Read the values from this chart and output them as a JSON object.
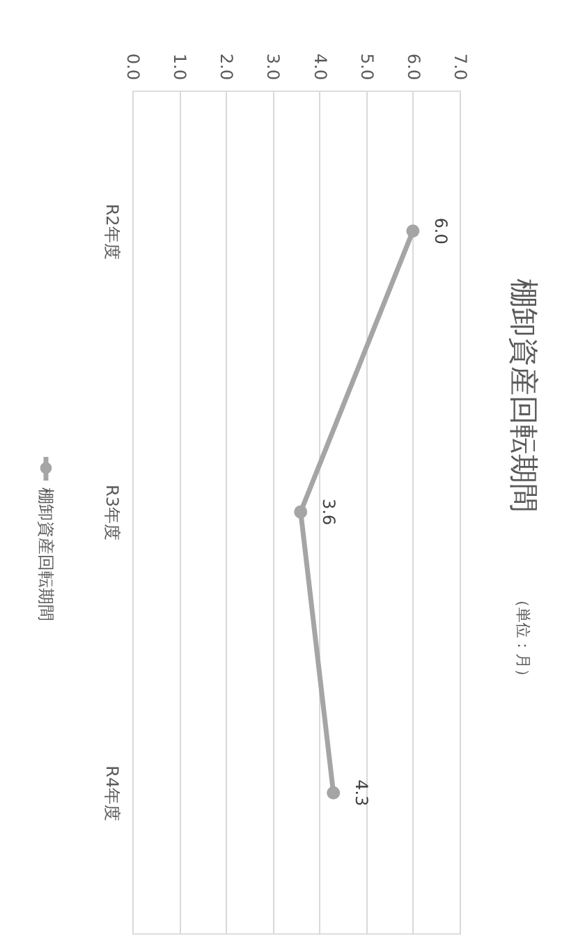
{
  "chart_data": {
    "type": "line",
    "orientation": "horizontal",
    "title": "棚卸資産回転期間",
    "subtitle": "（単位：月）",
    "categories": [
      "R2年度",
      "R3年度",
      "R4年度"
    ],
    "series": [
      {
        "name": "棚卸資産回転期間",
        "color": "#a5a5a5",
        "values": [
          6.0,
          3.6,
          4.3
        ],
        "value_labels": [
          "6.0",
          "3.6",
          "4.3"
        ]
      }
    ],
    "xlim": [
      0,
      7
    ],
    "xticks": [
      {
        "value": 0,
        "label": "0.0"
      },
      {
        "value": 1,
        "label": "1.0"
      },
      {
        "value": 2,
        "label": "2.0"
      },
      {
        "value": 3,
        "label": "3.0"
      },
      {
        "value": 4,
        "label": "4.0"
      },
      {
        "value": 5,
        "label": "5.0"
      },
      {
        "value": 6,
        "label": "6.0"
      },
      {
        "value": 7,
        "label": "7.0"
      }
    ],
    "grid": "x",
    "legend": "left",
    "marker": "circle"
  }
}
